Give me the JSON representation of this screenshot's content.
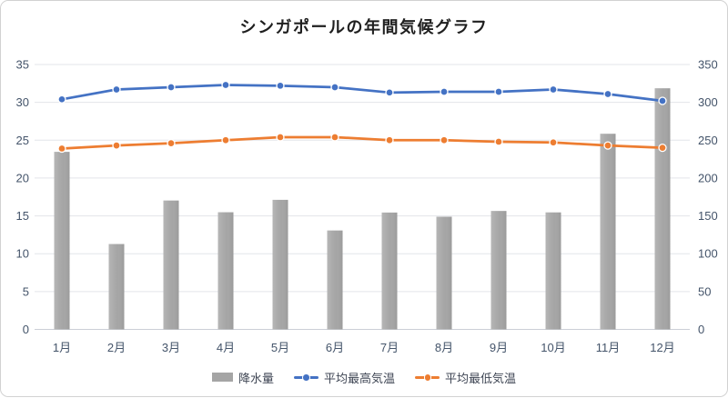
{
  "chart_data": {
    "type": "combo-bar-line",
    "title": "シンガポールの年間気候グラフ",
    "categories": [
      "1月",
      "2月",
      "3月",
      "4月",
      "5月",
      "6月",
      "7月",
      "8月",
      "9月",
      "10月",
      "11月",
      "12月"
    ],
    "series": [
      {
        "id": "precipitation",
        "name": "降水量",
        "chart": "bar",
        "axis": "right",
        "color": "#A5A5A5",
        "values": [
          234.6,
          112.8,
          170.3,
          154.8,
          171.2,
          130.7,
          154.4,
          148.9,
          156.5,
          154.6,
          258.5,
          318.6
        ]
      },
      {
        "id": "max-temp",
        "name": "平均最高気温",
        "chart": "line",
        "axis": "left",
        "color": "#4472C4",
        "values": [
          30.4,
          31.7,
          32.0,
          32.3,
          32.2,
          32.0,
          31.3,
          31.4,
          31.4,
          31.7,
          31.1,
          30.2
        ]
      },
      {
        "id": "min-temp",
        "name": "平均最低気温",
        "chart": "line",
        "axis": "left",
        "color": "#ED7D31",
        "values": [
          23.9,
          24.3,
          24.6,
          25.0,
          25.4,
          25.4,
          25.0,
          25.0,
          24.8,
          24.7,
          24.3,
          24.0
        ]
      }
    ],
    "left_axis": {
      "min": 0,
      "max": 35,
      "step": 5,
      "ticks": [
        "0",
        "5",
        "10",
        "15",
        "20",
        "25",
        "30",
        "35"
      ]
    },
    "right_axis": {
      "min": 0,
      "max": 350,
      "step": 50,
      "ticks": [
        "0",
        "50",
        "100",
        "150",
        "200",
        "250",
        "300",
        "350"
      ]
    },
    "grid": true,
    "legend_position": "bottom",
    "axis_label_color": "#44546A",
    "gridline_color": "#E3E5EA",
    "axis_line_color": "#CBCFD6"
  }
}
